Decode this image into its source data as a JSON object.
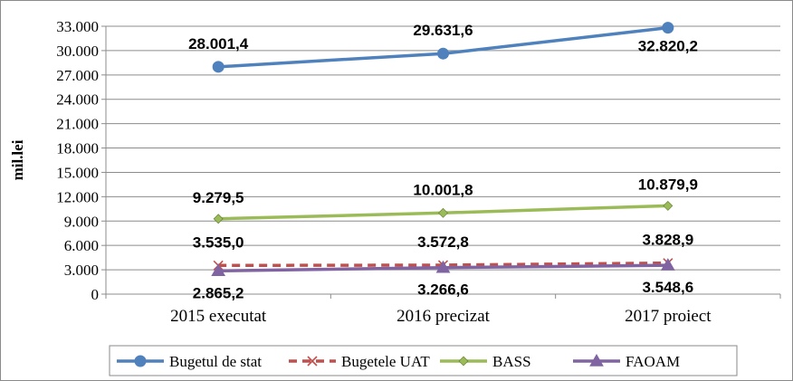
{
  "chart_data": {
    "type": "line",
    "title": "",
    "xlabel": "",
    "ylabel": "mil.lei",
    "categories": [
      "2015 executat",
      "2016 precizat",
      "2017 proiect"
    ],
    "ylim": [
      0,
      33000
    ],
    "yticks": [
      0,
      3000,
      6000,
      9000,
      12000,
      15000,
      18000,
      21000,
      24000,
      27000,
      30000,
      33000
    ],
    "ytick_labels": [
      "0",
      "3.000",
      "6.000",
      "9.000",
      "12.000",
      "15.000",
      "18.000",
      "21.000",
      "24.000",
      "27.000",
      "30.000",
      "33.000"
    ],
    "grid": true,
    "legend_position": "bottom",
    "series": [
      {
        "name": "Bugetul de stat",
        "values": [
          28001.4,
          29631.6,
          32820.2
        ],
        "labels": [
          "28.001,4",
          "29.631,6",
          "32.820,2"
        ],
        "color": "#4F81BD",
        "marker": "circle",
        "dash": false
      },
      {
        "name": "Bugetele UAT",
        "values": [
          3535.0,
          3572.8,
          3828.9
        ],
        "labels": [
          "3.535,0",
          "3.572,8",
          "3.828,9"
        ],
        "color": "#C0504D",
        "marker": "x",
        "dash": true
      },
      {
        "name": "BASS",
        "values": [
          9279.5,
          10001.8,
          10879.9
        ],
        "labels": [
          "9.279,5",
          "10.001,8",
          "10.879,9"
        ],
        "color": "#9BBB59",
        "marker": "diamond",
        "dash": false
      },
      {
        "name": "FAOAM",
        "values": [
          2865.2,
          3266.6,
          3548.6
        ],
        "labels": [
          "2.865,2",
          "3.266,6",
          "3.548,6"
        ],
        "color": "#8064A2",
        "marker": "triangle",
        "dash": false
      }
    ]
  }
}
